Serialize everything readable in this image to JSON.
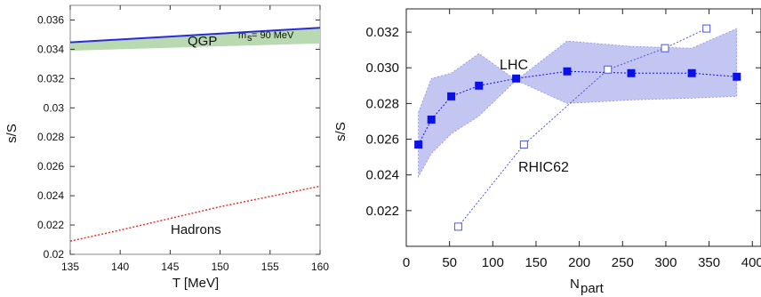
{
  "chart_data": [
    {
      "type": "line",
      "xlabel": "T [MeV]",
      "ylabel": "s/S",
      "xlim": [
        135,
        160
      ],
      "ylim": [
        0.02,
        0.037
      ],
      "xticks": [
        "135",
        "140",
        "145",
        "150",
        "155",
        "160"
      ],
      "yticks": [
        "0.02",
        "0.022",
        "0.024",
        "0.026",
        "0.028",
        "0.03",
        "0.032",
        "0.034",
        "0.036"
      ],
      "grid": false,
      "annotations": {
        "qgp": "QGP",
        "ms": "m",
        "ms_sub": "s",
        "ms_val": "= 90 MeV",
        "hadrons": "Hadrons"
      },
      "series": [
        {
          "name": "QGP",
          "color": "#2b2bd9",
          "x": [
            135,
            140,
            145,
            150,
            155,
            160
          ],
          "y": [
            0.03447,
            0.03467,
            0.03487,
            0.03507,
            0.03527,
            0.03547
          ]
        },
        {
          "name": "Hadrons",
          "color": "#e8302a",
          "x": [
            135,
            140,
            145,
            150,
            155,
            160
          ],
          "y": [
            0.0209,
            0.02165,
            0.02245,
            0.02325,
            0.02395,
            0.02465
          ]
        }
      ],
      "band": {
        "color": "#b9d9b0",
        "x": [
          135,
          160
        ],
        "lower": [
          0.0339,
          0.0344
        ],
        "upper": [
          0.0345,
          0.0355
        ]
      }
    },
    {
      "type": "line",
      "xlabel": "N",
      "xlabel_sub": "part",
      "ylabel": "s/S",
      "xlim": [
        0,
        410
      ],
      "ylim": [
        0.02,
        0.0333
      ],
      "xticks": [
        "0",
        "50",
        "100",
        "150",
        "200",
        "250",
        "300",
        "350",
        "400"
      ],
      "yticks": [
        "0.022",
        "0.024",
        "0.026",
        "0.028",
        "0.030",
        "0.032"
      ],
      "grid": false,
      "series": [
        {
          "name": "LHC",
          "color": "#0a10e6",
          "marker": "filled-square",
          "x": [
            14,
            29,
            52,
            84,
            127,
            186,
            260,
            330,
            382
          ],
          "y": [
            0.0257,
            0.0271,
            0.0284,
            0.029,
            0.0294,
            0.0298,
            0.0297,
            0.0297,
            0.0295
          ]
        },
        {
          "name": "RHIC62",
          "color": "#4a56d6",
          "marker": "open-square",
          "x": [
            60,
            136,
            233,
            299,
            347
          ],
          "y": [
            0.0211,
            0.0257,
            0.0299,
            0.0311,
            0.0322
          ]
        }
      ],
      "band": {
        "color": "#c4c6f2",
        "x": [
          14,
          29,
          52,
          84,
          127,
          186,
          260,
          330,
          382
        ],
        "upper": [
          0.0275,
          0.0294,
          0.0297,
          0.0308,
          0.0293,
          0.0315,
          0.0312,
          0.0311,
          0.0322
        ],
        "lower": [
          0.0239,
          0.0252,
          0.0263,
          0.0273,
          0.0293,
          0.028,
          0.0282,
          0.0283,
          0.0284
        ]
      }
    }
  ]
}
